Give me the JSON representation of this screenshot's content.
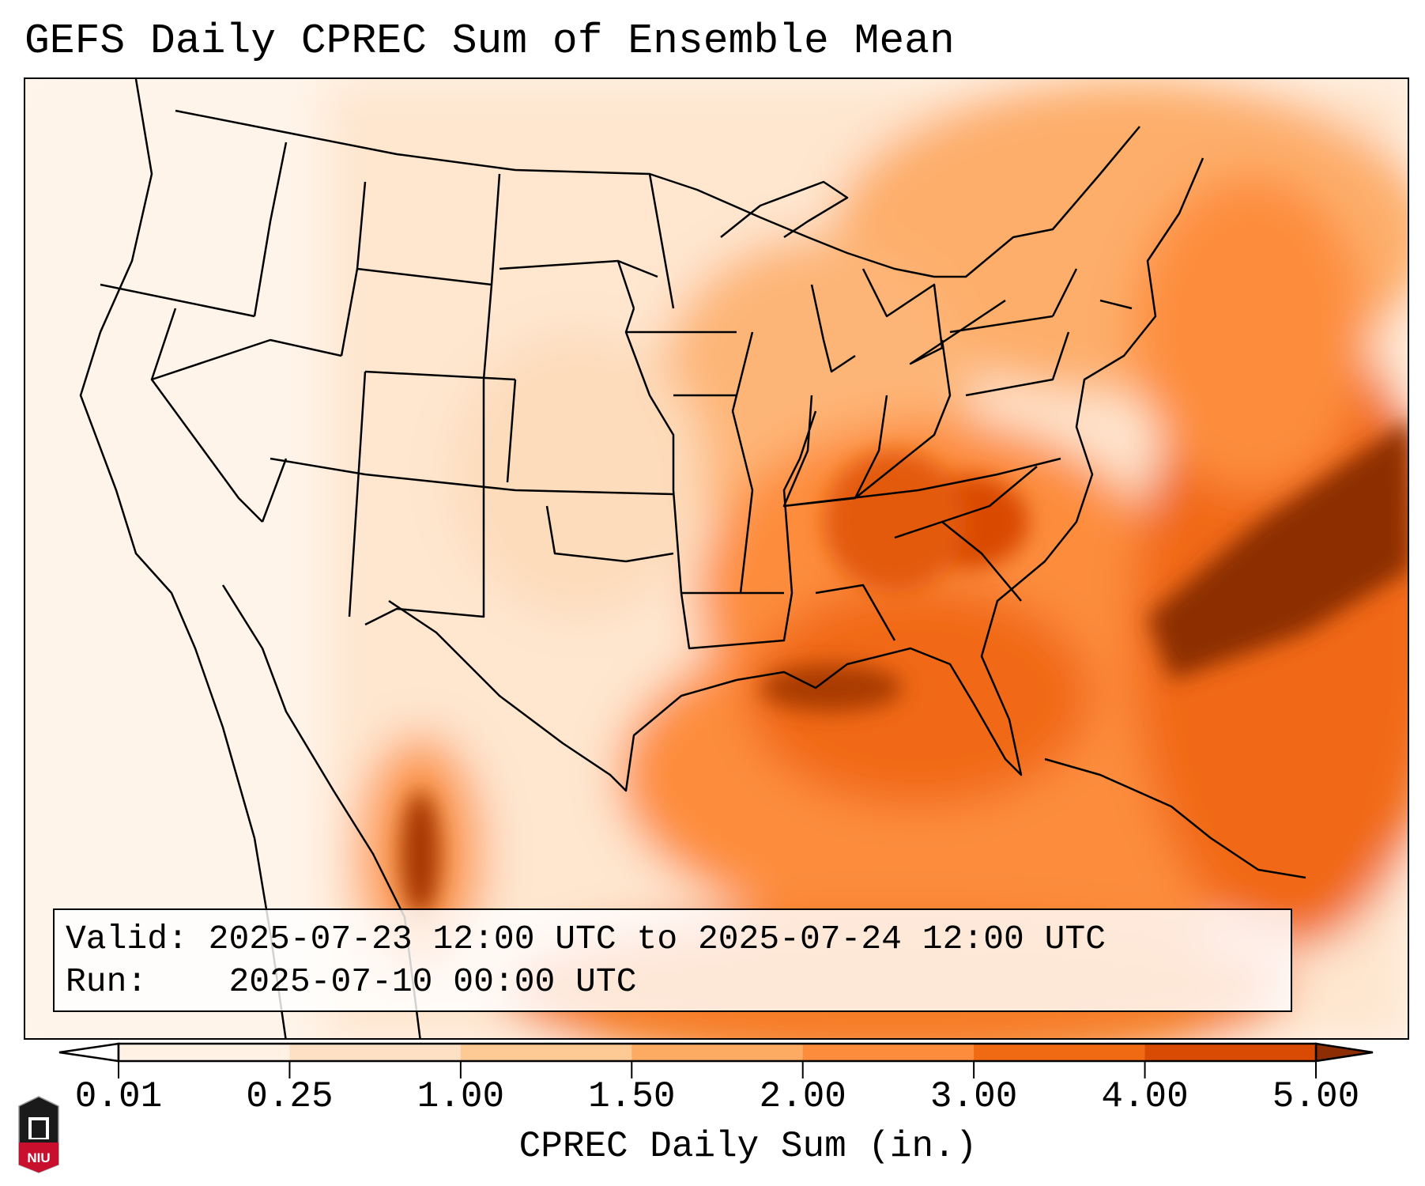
{
  "title": "GEFS Daily CPREC Sum of Ensemble Mean",
  "info": {
    "valid_label": "Valid:",
    "valid_value": "2025-07-23 12:00 UTC to 2025-07-24 12:00 UTC",
    "run_label": "Run:",
    "run_value": "2025-07-10 00:00 UTC"
  },
  "colorbar": {
    "label": "CPREC Daily Sum (in.)",
    "ticks": [
      "0.01",
      "0.25",
      "1.00",
      "1.50",
      "2.00",
      "3.00",
      "4.00",
      "5.00"
    ],
    "colors": [
      "#fff1e3",
      "#fee0c4",
      "#fdca96",
      "#fdab62",
      "#fd8c3c",
      "#f06a14",
      "#d94a02"
    ],
    "extend_min_color": "#ffffff",
    "extend_max_color": "#8c2d04"
  },
  "logo": {
    "text": "NIU"
  }
}
